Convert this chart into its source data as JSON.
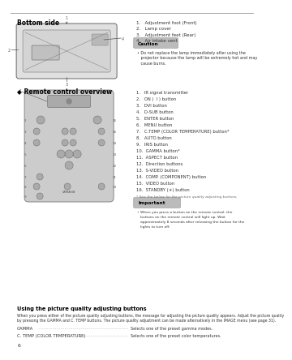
{
  "page_number": "6",
  "bg_color": "#ffffff",
  "top_rule_color": "#888888",
  "section1_title": "Bottom side",
  "section1_items": [
    "1.   Adjustment foot (Front)",
    "2.   Lamp cover",
    "3.   Adjustment feet (Rear)",
    "4.   Air intake vent"
  ],
  "caution_label": "Caution",
  "caution_text": "Do not replace the lamp immediately after using the\nprojector because the lamp will be extremely hot and may\ncause burns.",
  "section2_title": "◆ Remote control overview",
  "section2_items": [
    "1.   IR signal transmitter",
    "2.   ON (  I ) button",
    "3.   DVI button",
    "4.   D-SUB button",
    "5.   ENTER button",
    "6.   MENU button",
    "7.   C.TEMP (COLOR TEMPERATURE) button*",
    "8.   AUTO button",
    "9.   IRIS button",
    "10.  GAMMA button*",
    "11.  ASPECT button",
    "12.  Direction buttons",
    "13.  S-VIDEO button",
    "14.  COMP. (COMPONENT) button",
    "15.  VIDEO button",
    "16.  STANDBY (☀) button"
  ],
  "asterisk_note": "* See the below for the picture quality adjusting buttons.",
  "important_label": "Important",
  "important_text": "When you press a button on the remote control, the\nbuttons on the remote control will light up. Wait\napproximately 8 seconds after releasing the button for the\nlights to turn off.",
  "section3_title": "Using the picture quality adjusting buttons",
  "section3_intro1": "When you press either of the picture quality adjusting buttons, the message for adjusting the picture quality appears. Adjust the picture quality",
  "section3_intro2": "by pressing the GAMMA and C. TEMP buttons. The picture quality adjustment can be made alternatively in the IMAGE menu (see page 31).",
  "gamma_label": "GAMMA",
  "gamma_desc": "Selects one of the preset gamma modes.",
  "ctemp_label": "C. TEMP (COLOR TEMPERATURE)",
  "ctemp_desc": "Selects one of the preset color temperatures.",
  "title_color": "#000000",
  "text_color": "#333333",
  "dim_color": "#555555",
  "caution_bg": "#bbbbbb",
  "important_bg": "#bbbbbb",
  "rule_color": "#aaaaaa"
}
